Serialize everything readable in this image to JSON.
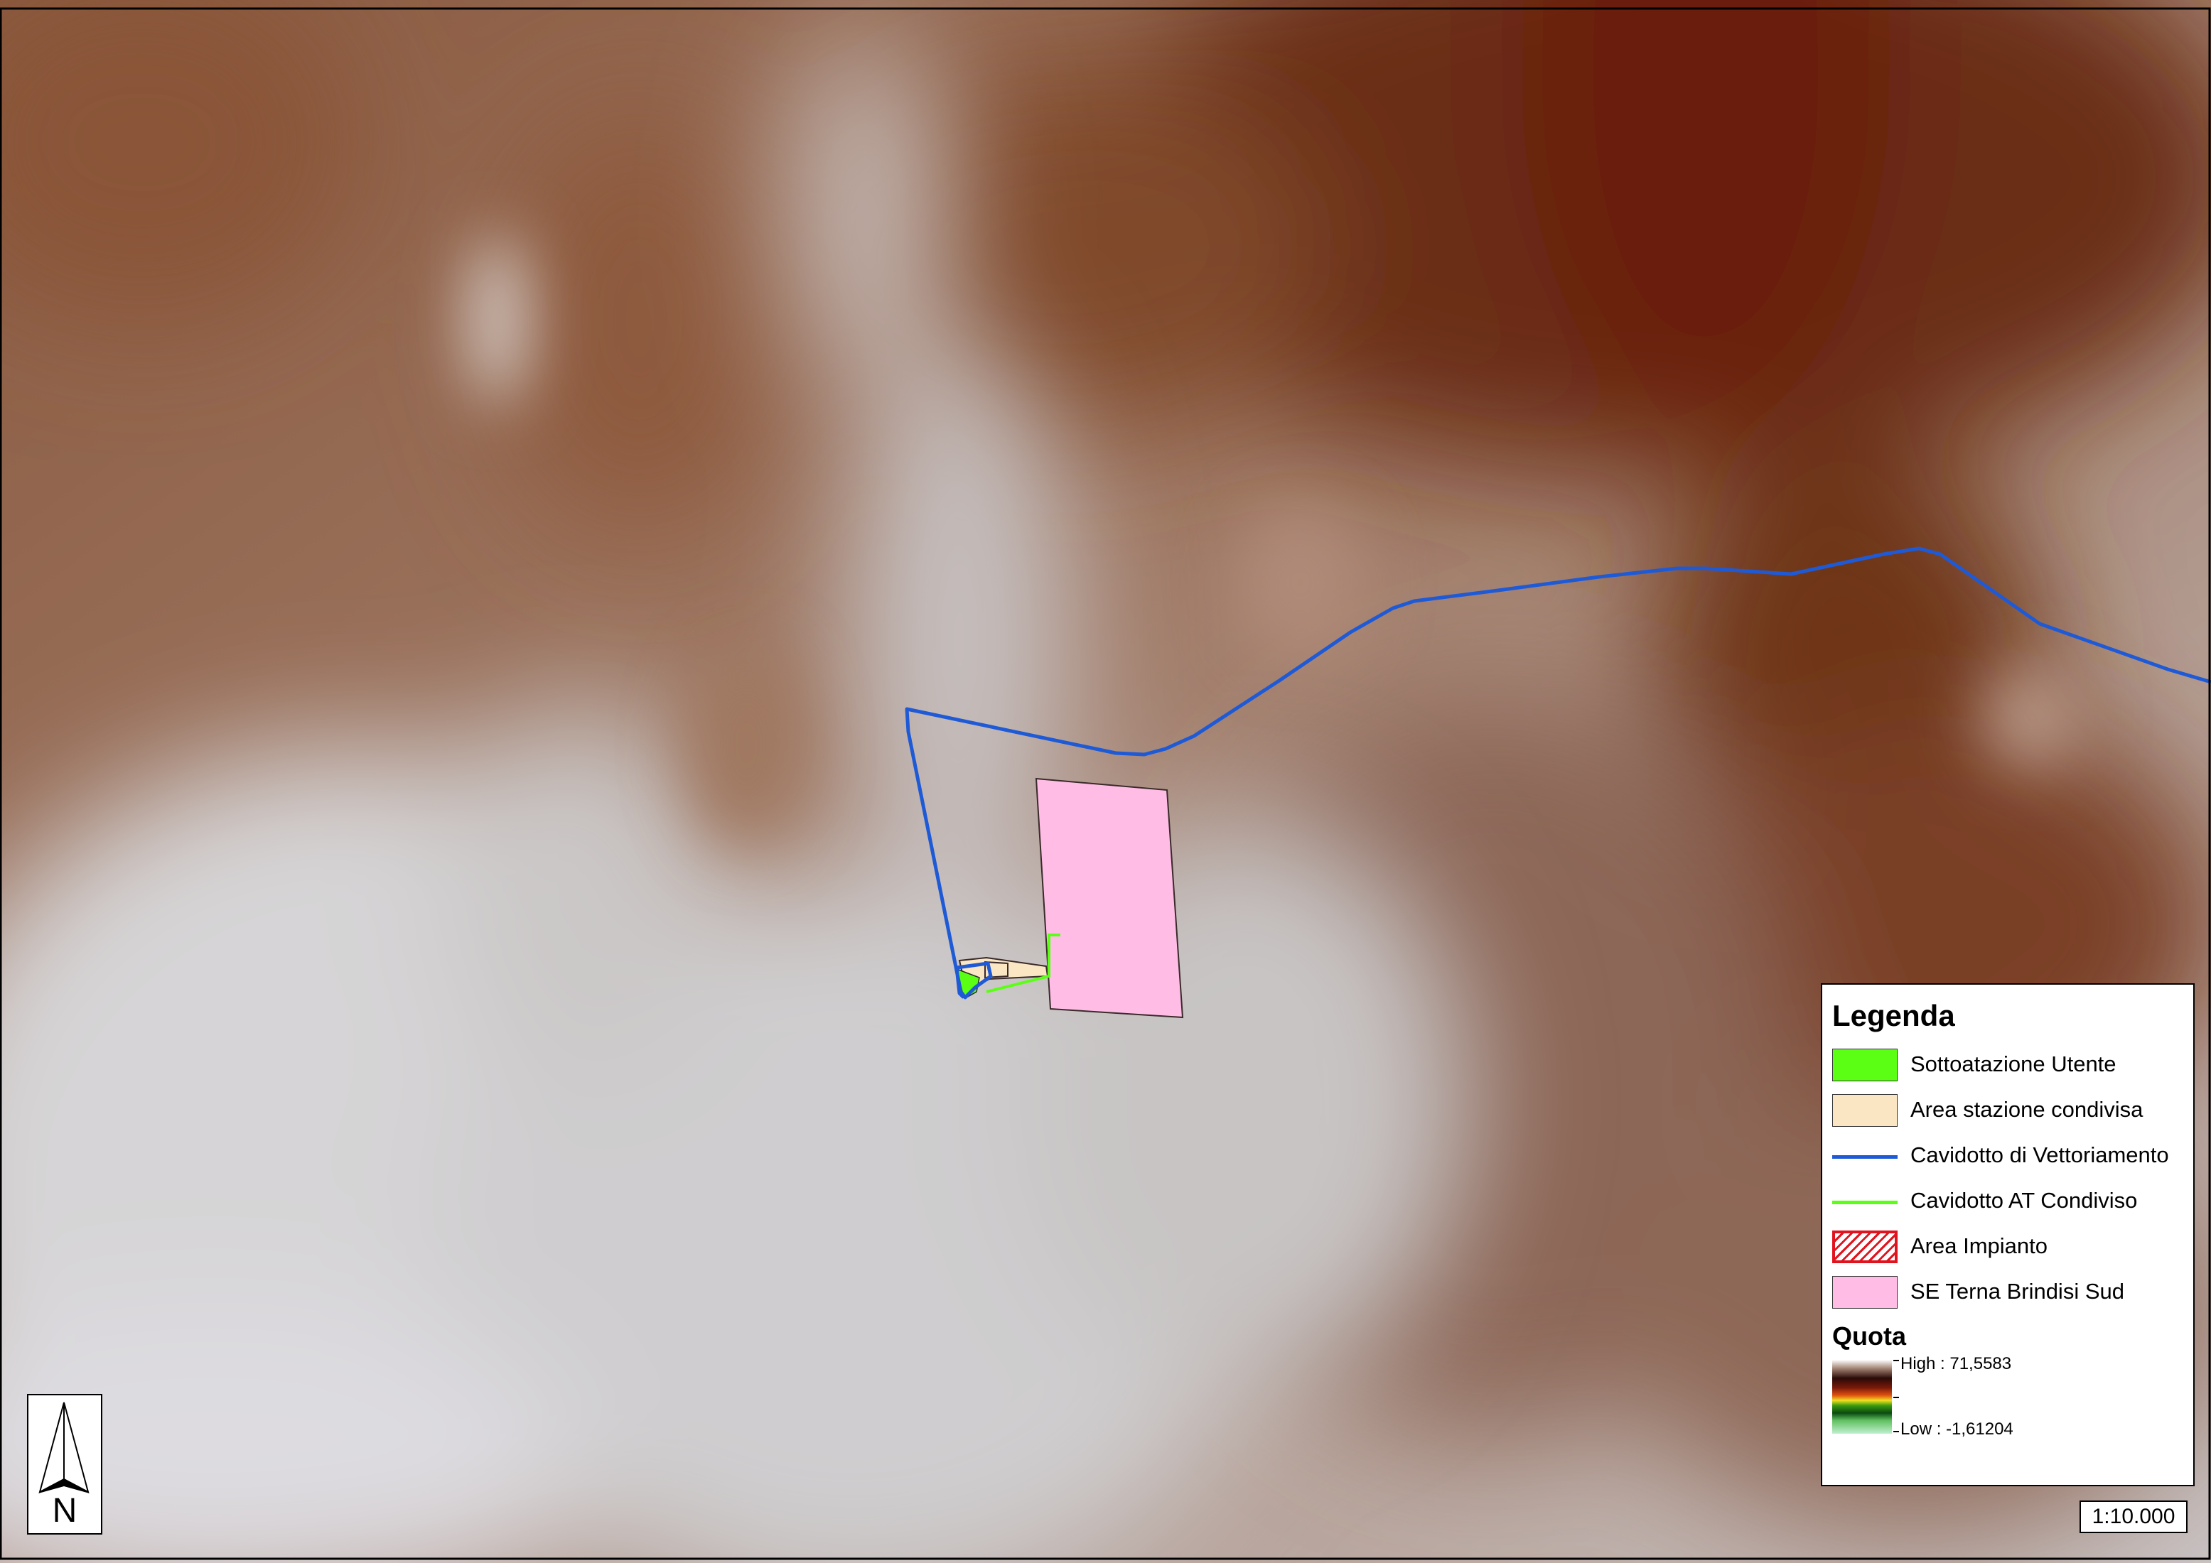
{
  "map": {
    "frame_color": "#000000",
    "colors": {
      "elevation_high": "#6e2410",
      "elevation_mid": "#9a6a50",
      "elevation_low": "#d2d0d2",
      "cavidotto_vettoriamento": "#1f5ad6",
      "cavidotto_at": "#5aff14",
      "se_terna": "#ffbde6",
      "area_stazione": "#fae6c3",
      "sottostazione": "#5aff14"
    }
  },
  "legend": {
    "title": "Legenda",
    "items": [
      {
        "label": "Sottoatazione Utente",
        "kind": "fill",
        "color": "#5aff14"
      },
      {
        "label": "Area stazione condivisa",
        "kind": "fill",
        "color": "#fae6c3"
      },
      {
        "label": "Cavidotto di Vettoriamento",
        "kind": "line",
        "color": "#1f5ad6"
      },
      {
        "label": "Cavidotto AT Condiviso",
        "kind": "line",
        "color": "#5aff14"
      },
      {
        "label": "Area Impianto",
        "kind": "hatch",
        "color": "#e0141e"
      },
      {
        "label": "SE Terna Brindisi Sud",
        "kind": "fill",
        "color": "#ffbde6"
      }
    ],
    "quota": {
      "title": "Quota",
      "high_label": "High : 71,5583",
      "low_label": "Low : -1,61204",
      "high": 71.5583,
      "low": -1.61204
    }
  },
  "scale_bar": {
    "label": "1:10.000"
  },
  "north_arrow": {
    "label": "N",
    "icon": "north-arrow-icon"
  }
}
